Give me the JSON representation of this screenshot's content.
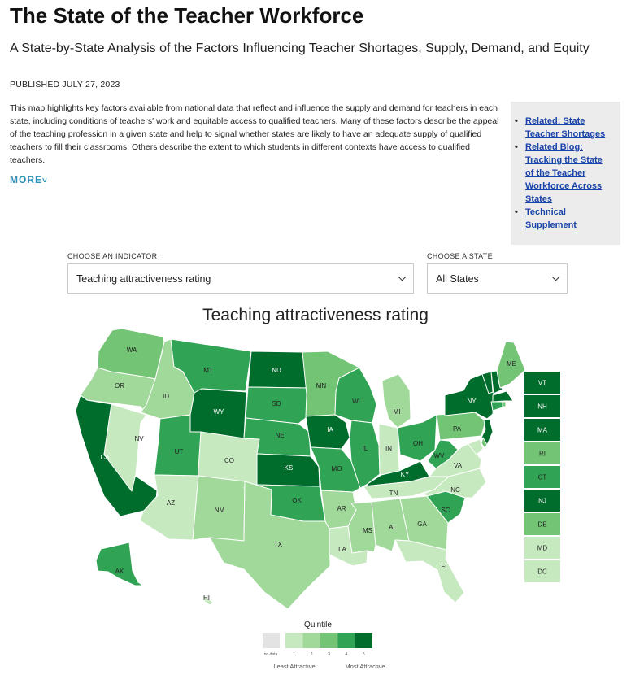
{
  "header": {
    "title": "The State of the Teacher Workforce",
    "subtitle": "A State-by-State Analysis of the Factors Influencing Teacher Shortages, Supply, Demand, and Equity",
    "published": "PUBLISHED JULY 27, 2023",
    "intro": "This map highlights key factors available from national data that reflect and influence the supply and demand for teachers in each state, including conditions of teachers' work and equitable access to qualified teachers. Many of these factors describe the appeal of the teaching profession in a given state and help to signal whether states are likely to have an adequate supply of qualified teachers to fill their classrooms. Others describe the extent to which students in different contexts have access to qualified teachers.",
    "more_label": "MORE"
  },
  "related": {
    "links": [
      "Related: State Teacher Shortages",
      "Related Blog: Tracking the State of the Teacher Workforce Across States",
      "Technical Supplement"
    ]
  },
  "controls": {
    "indicator_label": "CHOOSE AN INDICATOR",
    "indicator_value": "Teaching attractiveness rating",
    "state_label": "CHOOSE A STATE",
    "state_value": "All States"
  },
  "map": {
    "title": "Teaching attractiveness rating",
    "colors": {
      "q0": "#e3e3e3",
      "q1": "#c7e9c0",
      "q2": "#a1d99b",
      "q3": "#74c476",
      "q4": "#31a354",
      "q5": "#006d2c",
      "border": "#ffffff"
    },
    "quintiles": {
      "WA": 3,
      "OR": 2,
      "CA": 5,
      "NV": 1,
      "ID": 2,
      "MT": 4,
      "WY": 5,
      "UT": 4,
      "AZ": 1,
      "CO": 1,
      "NM": 2,
      "ND": 5,
      "SD": 4,
      "NE": 4,
      "KS": 5,
      "OK": 4,
      "TX": 2,
      "MN": 3,
      "IA": 5,
      "MO": 4,
      "AR": 2,
      "LA": 1,
      "WI": 4,
      "IL": 4,
      "MI": 2,
      "IN": 1,
      "OH": 4,
      "KY": 5,
      "TN": 1,
      "MS": 2,
      "AL": 2,
      "GA": 2,
      "FL": 1,
      "SC": 4,
      "NC": 1,
      "VA": 1,
      "WV": 4,
      "PA": 3,
      "NY": 5,
      "ME": 3,
      "VT": 5,
      "NH": 5,
      "MA": 5,
      "RI": 3,
      "CT": 4,
      "NJ": 5,
      "DE": 3,
      "MD": 1,
      "DC": 1,
      "AK": 4,
      "HI": 1
    },
    "small_states": [
      "VT",
      "NH",
      "MA",
      "RI",
      "CT",
      "NJ",
      "DE",
      "MD",
      "DC"
    ],
    "legend": {
      "title": "Quintile",
      "no_data": "no data",
      "labels": [
        "1",
        "2",
        "3",
        "4",
        "5"
      ],
      "low_label": "Least Attractive",
      "high_label": "Most Attractive"
    }
  }
}
